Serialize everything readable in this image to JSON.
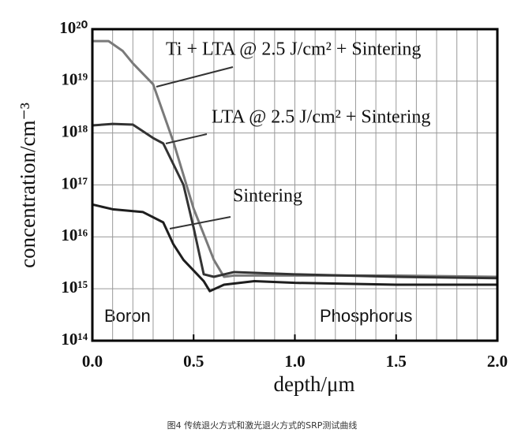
{
  "chart_data": {
    "type": "line",
    "log_y": true,
    "grid": true,
    "x_minor_grid": 0.1,
    "xlabel": "depth/μm",
    "ylabel": "concentration/cm⁻³",
    "caption": "图4 传统退火方式和激光退火方式的SRP测试曲线",
    "annotations": [
      "Boron",
      "Phosphorus"
    ],
    "xlim": [
      0,
      2
    ],
    "xticks": [
      {
        "value": 0,
        "label": "0.0"
      },
      0.5,
      {
        "value": 1,
        "label": "1.0"
      },
      1.5,
      {
        "value": 2,
        "label": "2.0"
      }
    ],
    "ylim": [
      100000000000000.0,
      1e+20
    ],
    "yticks": [
      {
        "value": 100000000000000.0,
        "label": "10¹⁴"
      },
      {
        "value": 1000000000000000.0,
        "label": "10¹⁵"
      },
      {
        "value": 1e+16,
        "label": "10¹⁶"
      },
      {
        "value": 1e+17,
        "label": "10¹⁷"
      },
      {
        "value": 1e+18,
        "label": "10¹⁸"
      },
      {
        "value": 1e+19,
        "label": "10¹⁹"
      },
      {
        "value": 1e+20,
        "label": "10²⁰"
      }
    ],
    "series": [
      {
        "name": "Ti + LTA @ 2.5 J/cm² + Sintering",
        "color": "#7a7a7a",
        "x": [
          0,
          0.08,
          0.15,
          0.2,
          0.3,
          0.4,
          0.5,
          0.6,
          0.65,
          0.7,
          1.0,
          1.5,
          2.0
        ],
        "values": [
          5.9e+19,
          5.9e+19,
          3.8e+19,
          2.2e+19,
          8.7e+18,
          6.8e+17,
          3.5e+16,
          3600000000000000.0,
          1700000000000000.0,
          1800000000000000.0,
          1800000000000000.0,
          1800000000000000.0,
          1700000000000000.0
        ]
      },
      {
        "name": "LTA @ 2.5 J/cm² + Sintering",
        "color": "#333333",
        "x": [
          0,
          0.1,
          0.2,
          0.3,
          0.35,
          0.45,
          0.5,
          0.55,
          0.6,
          0.7,
          1.0,
          1.5,
          2.0
        ],
        "values": [
          1.4e+18,
          1.5e+18,
          1.45e+18,
          8e+17,
          6.3e+17,
          1e+17,
          1.5e+16,
          1900000000000000.0,
          1700000000000000.0,
          2100000000000000.0,
          1900000000000000.0,
          1700000000000000.0,
          1600000000000000.0
        ]
      },
      {
        "name": "Sintering",
        "color": "#1e1e1e",
        "x": [
          0,
          0.1,
          0.25,
          0.35,
          0.4,
          0.45,
          0.55,
          0.58,
          0.65,
          0.8,
          1.0,
          1.5,
          2.0
        ],
        "values": [
          4.2e+16,
          3.4e+16,
          3e+16,
          1.9e+16,
          7200000000000000.0,
          3600000000000000.0,
          1400000000000000.0,
          900000000000000.0,
          1200000000000000.0,
          1400000000000000.0,
          1300000000000000.0,
          1200000000000000.0,
          1200000000000000.0
        ]
      }
    ]
  }
}
